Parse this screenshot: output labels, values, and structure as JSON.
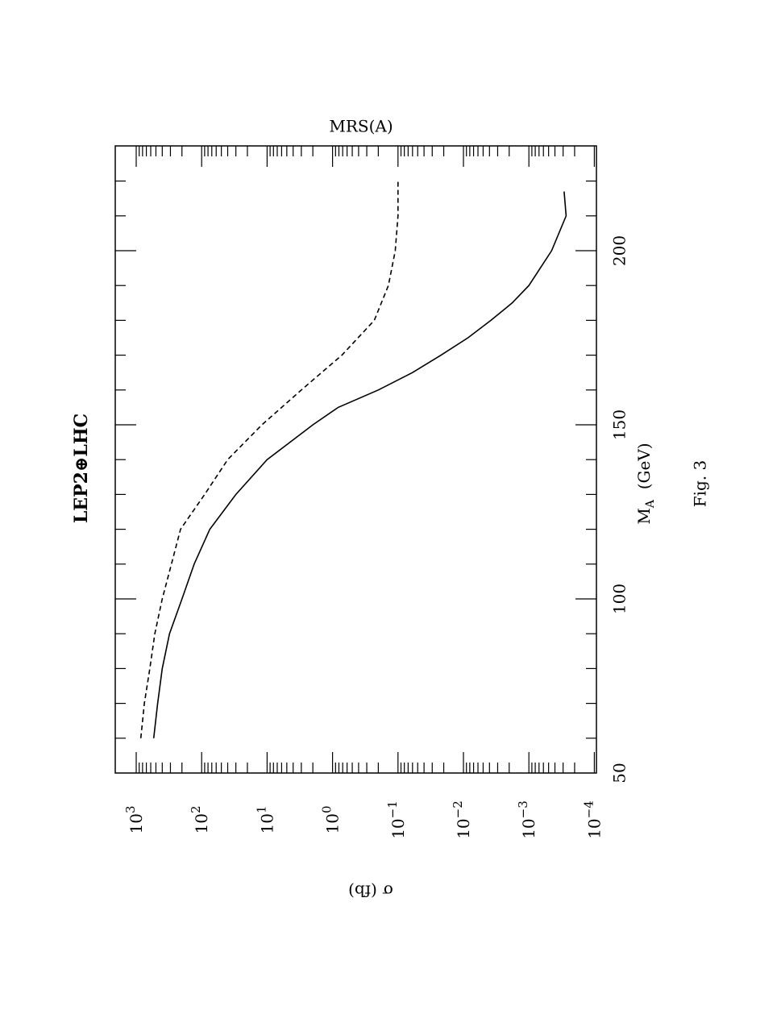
{
  "chart_data": {
    "type": "line",
    "orientation": "rotated-90-degrees-clockwise",
    "title": "LEP2⊕LHC",
    "subtitle": "MRS(A)",
    "xlabel_main": "M",
    "xlabel_sub": "A",
    "xlabel_unit": "(GeV)",
    "ylabel": "σ (fb)",
    "caption": "Fig. 3",
    "xlim": [
      50,
      220
    ],
    "ylim": [
      0.0001,
      1000
    ],
    "yscale": "log",
    "x_ticks": [
      50,
      100,
      150,
      200
    ],
    "y_ticks": [
      {
        "base": "10",
        "exp": "3",
        "value": 1000
      },
      {
        "base": "10",
        "exp": "2",
        "value": 100
      },
      {
        "base": "10",
        "exp": "1",
        "value": 10
      },
      {
        "base": "10",
        "exp": "0",
        "value": 1
      },
      {
        "base": "10",
        "exp": "−1",
        "value": 0.1
      },
      {
        "base": "10",
        "exp": "−2",
        "value": 0.01
      },
      {
        "base": "10",
        "exp": "−3",
        "value": 0.001
      },
      {
        "base": "10",
        "exp": "−4",
        "value": 0.0001
      }
    ],
    "series": [
      {
        "style": "solid",
        "x": [
          60,
          70,
          80,
          90,
          100,
          110,
          120,
          130,
          140,
          150,
          155,
          160,
          165,
          170,
          175,
          180,
          185,
          190,
          200,
          210,
          217
        ],
        "y": [
          540,
          470,
          400,
          310,
          200,
          130,
          75,
          30,
          10,
          2.0,
          0.82,
          0.2,
          0.06,
          0.022,
          0.0085,
          0.0038,
          0.0018,
          0.001,
          0.00045,
          0.00027,
          0.00029
        ]
      },
      {
        "style": "dashed",
        "x": [
          60,
          70,
          80,
          90,
          100,
          110,
          120,
          130,
          140,
          150,
          160,
          170,
          180,
          190,
          200,
          210,
          220
        ],
        "y": [
          850,
          750,
          620,
          520,
          400,
          290,
          210,
          90,
          40,
          12,
          3.0,
          0.72,
          0.23,
          0.14,
          0.11,
          0.1,
          0.1
        ]
      }
    ],
    "grid": false,
    "legend": "none"
  }
}
